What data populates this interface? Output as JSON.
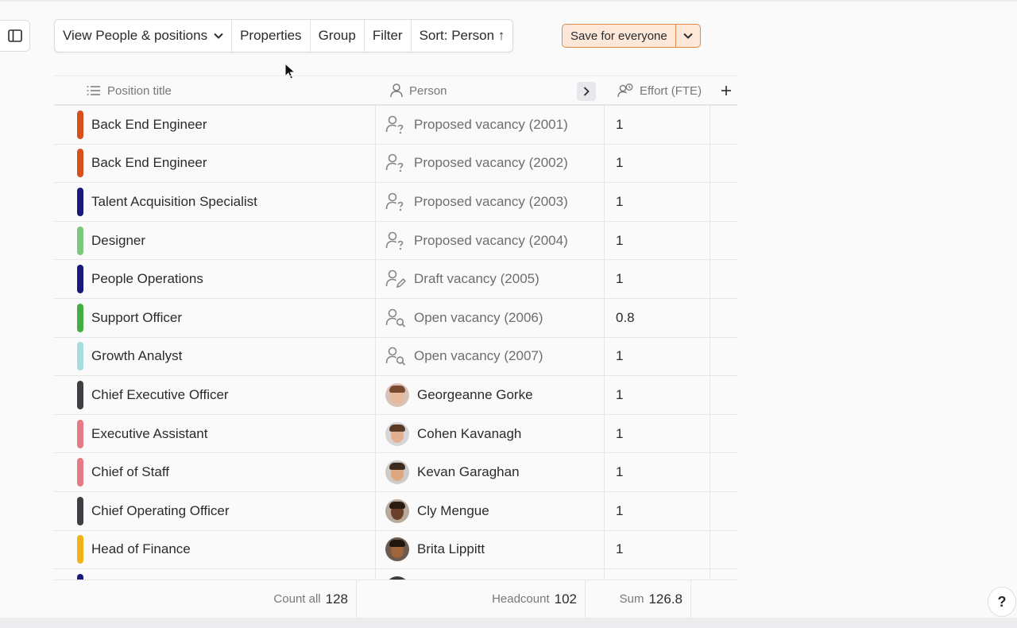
{
  "toolbar": {
    "view_label": "View People & positions",
    "properties_label": "Properties",
    "group_label": "Group",
    "filter_label": "Filter",
    "sort_label": "Sort: Person ↑"
  },
  "save": {
    "label": "Save for everyone",
    "accent": "#e08a4e"
  },
  "columns": {
    "position": "Position title",
    "person": "Person",
    "effort": "Effort (FTE)"
  },
  "rows": [
    {
      "title": "Back End Engineer",
      "color": "#d9501e",
      "person": "Proposed vacancy (2001)",
      "kind": "proposed",
      "effort": "1"
    },
    {
      "title": "Back End Engineer",
      "color": "#d9501e",
      "person": "Proposed vacancy (2002)",
      "kind": "proposed",
      "effort": "1"
    },
    {
      "title": "Talent Acquisition Specialist",
      "color": "#1a1a7a",
      "person": "Proposed vacancy (2003)",
      "kind": "proposed",
      "effort": "1"
    },
    {
      "title": "Designer",
      "color": "#7cc77e",
      "person": "Proposed vacancy (2004)",
      "kind": "proposed",
      "effort": "1"
    },
    {
      "title": "People Operations",
      "color": "#1a1a7a",
      "person": "Draft vacancy (2005)",
      "kind": "draft",
      "effort": "1"
    },
    {
      "title": "Support Officer",
      "color": "#45ad42",
      "person": "Open vacancy (2006)",
      "kind": "open",
      "effort": "0.8"
    },
    {
      "title": "Growth Analyst",
      "color": "#a6dbe0",
      "person": "Open vacancy (2007)",
      "kind": "open",
      "effort": "1"
    },
    {
      "title": "Chief Executive Officer",
      "color": "#3f3f44",
      "person": "Georgeanne Gorke",
      "kind": "person",
      "effort": "1"
    },
    {
      "title": "Executive Assistant",
      "color": "#e57a84",
      "person": "Cohen Kavanagh",
      "kind": "person",
      "effort": "1"
    },
    {
      "title": "Chief of Staff",
      "color": "#e57a84",
      "person": "Kevan Garaghan",
      "kind": "person",
      "effort": "1"
    },
    {
      "title": "Chief Operating Officer",
      "color": "#3f3f44",
      "person": "Cly Mengue",
      "kind": "person",
      "effort": "1"
    },
    {
      "title": "Head of Finance",
      "color": "#f0b419",
      "person": "Brita Lippitt",
      "kind": "person",
      "effort": "1"
    },
    {
      "title": "",
      "color": "#1a1a7a",
      "person": "",
      "kind": "person",
      "effort": ""
    }
  ],
  "footer": {
    "count_label": "Count all",
    "count_value": "128",
    "headcount_label": "Headcount",
    "headcount_value": "102",
    "sum_label": "Sum",
    "sum_value": "126.8"
  },
  "help_label": "?"
}
